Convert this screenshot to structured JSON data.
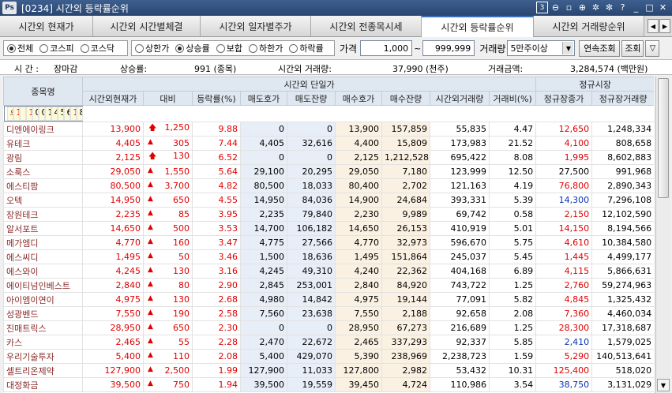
{
  "window": {
    "code": "[0234]",
    "title": "시간외 등락률순위",
    "logo": "Ps",
    "tool_number": "3"
  },
  "tabs": [
    {
      "label": "시간외 현재가"
    },
    {
      "label": "시간외 시간별체결"
    },
    {
      "label": "시간외 일자별주가"
    },
    {
      "label": "시간외 전종목시세"
    },
    {
      "label": "시간외 등락률순위"
    },
    {
      "label": "시간외 거래량순위"
    }
  ],
  "filters": {
    "market": [
      "전체",
      "코스피",
      "코스닥"
    ],
    "direction": [
      "상한가",
      "상승률",
      "보합",
      "하한가",
      "하락률"
    ],
    "price_label": "가격",
    "price_from": "1,000",
    "price_sep": "~",
    "price_to": "999,999",
    "volume_label": "거래량",
    "volume_value": "5만주이상",
    "continuous_btn": "연속조회",
    "query_btn": "조회"
  },
  "summary": {
    "time_label": "시  간 :",
    "time_value": "장마감",
    "rise_label": "상승률:",
    "rise_value": "991 (종목)",
    "vol_label": "시간외 거래량:",
    "vol_value": "37,990 (천주)",
    "amt_label": "거래금액:",
    "amt_value": "3,284,574 (백만원)"
  },
  "header": {
    "name": "종목명",
    "group1": "시간외 단일가",
    "group2": "정규시장",
    "cols": [
      "시간외현재가",
      "대비",
      "등락률(%)",
      "매도호가",
      "매도잔량",
      "매수호가",
      "매수잔량",
      "시간외거래량",
      "거래비(%)",
      "정규장종가",
      "정규장거래량"
    ]
  },
  "rows": [
    {
      "n": "우정바이오",
      "p": "11,550",
      "s": "u",
      "c": "1,050",
      "r": "10.00",
      "ap": "0",
      "aq": "0",
      "bp": "11,550",
      "bq": "434,784",
      "v": "586,459",
      "vr": "6.98",
      "cl": "10,500",
      "cc": "up",
      "cv": "8,402,296"
    },
    {
      "n": "디엔에이링크",
      "p": "13,900",
      "s": "u",
      "c": "1,250",
      "r": "9.88",
      "ap": "0",
      "aq": "0",
      "bp": "13,900",
      "bq": "157,859",
      "v": "55,835",
      "vr": "4.47",
      "cl": "12,650",
      "cc": "up",
      "cv": "1,248,334"
    },
    {
      "n": "유테크",
      "p": "4,405",
      "s": "t",
      "c": "305",
      "r": "7.44",
      "ap": "4,405",
      "aq": "32,616",
      "bp": "4,400",
      "bq": "15,809",
      "v": "173,983",
      "vr": "21.52",
      "cl": "4,100",
      "cc": "up",
      "cv": "808,658"
    },
    {
      "n": "광림",
      "p": "2,125",
      "s": "u",
      "c": "130",
      "r": "6.52",
      "ap": "0",
      "aq": "0",
      "bp": "2,125",
      "bq": "1,212,528",
      "v": "695,422",
      "vr": "8.08",
      "cl": "1,995",
      "cc": "up",
      "cv": "8,602,883"
    },
    {
      "n": "소룩스",
      "p": "29,050",
      "s": "t",
      "c": "1,550",
      "r": "5.64",
      "ap": "29,100",
      "aq": "20,295",
      "bp": "29,050",
      "bq": "7,180",
      "v": "123,999",
      "vr": "12.50",
      "cl": "27,500",
      "cc": "",
      "cv": "991,968"
    },
    {
      "n": "에스티팜",
      "p": "80,500",
      "s": "t",
      "c": "3,700",
      "r": "4.82",
      "ap": "80,500",
      "aq": "18,033",
      "bp": "80,400",
      "bq": "2,702",
      "v": "121,163",
      "vr": "4.19",
      "cl": "76,800",
      "cc": "up",
      "cv": "2,890,343"
    },
    {
      "n": "오텍",
      "p": "14,950",
      "s": "t",
      "c": "650",
      "r": "4.55",
      "ap": "14,950",
      "aq": "84,036",
      "bp": "14,900",
      "bq": "24,684",
      "v": "393,331",
      "vr": "5.39",
      "cl": "14,300",
      "cc": "dn",
      "cv": "7,296,108"
    },
    {
      "n": "장원테크",
      "p": "2,235",
      "s": "t",
      "c": "85",
      "r": "3.95",
      "ap": "2,235",
      "aq": "79,840",
      "bp": "2,230",
      "bq": "9,989",
      "v": "69,742",
      "vr": "0.58",
      "cl": "2,150",
      "cc": "up",
      "cv": "12,102,590"
    },
    {
      "n": "알서포트",
      "p": "14,650",
      "s": "t",
      "c": "500",
      "r": "3.53",
      "ap": "14,700",
      "aq": "106,182",
      "bp": "14,650",
      "bq": "26,153",
      "v": "410,919",
      "vr": "5.01",
      "cl": "14,150",
      "cc": "up",
      "cv": "8,194,566"
    },
    {
      "n": "메가엠디",
      "p": "4,770",
      "s": "t",
      "c": "160",
      "r": "3.47",
      "ap": "4,775",
      "aq": "27,566",
      "bp": "4,770",
      "bq": "32,973",
      "v": "596,670",
      "vr": "5.75",
      "cl": "4,610",
      "cc": "up",
      "cv": "10,384,580"
    },
    {
      "n": "에스씨디",
      "p": "1,495",
      "s": "t",
      "c": "50",
      "r": "3.46",
      "ap": "1,500",
      "aq": "18,636",
      "bp": "1,495",
      "bq": "151,864",
      "v": "245,037",
      "vr": "5.45",
      "cl": "1,445",
      "cc": "up",
      "cv": "4,499,177"
    },
    {
      "n": "에스와이",
      "p": "4,245",
      "s": "t",
      "c": "130",
      "r": "3.16",
      "ap": "4,245",
      "aq": "49,310",
      "bp": "4,240",
      "bq": "22,362",
      "v": "404,168",
      "vr": "6.89",
      "cl": "4,115",
      "cc": "up",
      "cv": "5,866,631"
    },
    {
      "n": "에이티넘인베스트",
      "p": "2,840",
      "s": "t",
      "c": "80",
      "r": "2.90",
      "ap": "2,845",
      "aq": "253,001",
      "bp": "2,840",
      "bq": "84,920",
      "v": "743,722",
      "vr": "1.25",
      "cl": "2,760",
      "cc": "up",
      "cv": "59,274,963"
    },
    {
      "n": "아이엠이연이",
      "p": "4,975",
      "s": "t",
      "c": "130",
      "r": "2.68",
      "ap": "4,980",
      "aq": "14,842",
      "bp": "4,975",
      "bq": "19,144",
      "v": "77,091",
      "vr": "5.82",
      "cl": "4,845",
      "cc": "up",
      "cv": "1,325,432"
    },
    {
      "n": "성광벤드",
      "p": "7,550",
      "s": "t",
      "c": "190",
      "r": "2.58",
      "ap": "7,560",
      "aq": "23,638",
      "bp": "7,550",
      "bq": "2,188",
      "v": "92,658",
      "vr": "2.08",
      "cl": "7,360",
      "cc": "up",
      "cv": "4,460,034"
    },
    {
      "n": "진매트릭스",
      "p": "28,950",
      "s": "t",
      "c": "650",
      "r": "2.30",
      "ap": "0",
      "aq": "0",
      "bp": "28,950",
      "bq": "67,273",
      "v": "216,689",
      "vr": "1.25",
      "cl": "28,300",
      "cc": "up",
      "cv": "17,318,687"
    },
    {
      "n": "카스",
      "p": "2,465",
      "s": "t",
      "c": "55",
      "r": "2.28",
      "ap": "2,470",
      "aq": "22,672",
      "bp": "2,465",
      "bq": "337,293",
      "v": "92,337",
      "vr": "5.85",
      "cl": "2,410",
      "cc": "dn",
      "cv": "1,579,025"
    },
    {
      "n": "우리기술투자",
      "p": "5,400",
      "s": "t",
      "c": "110",
      "r": "2.08",
      "ap": "5,400",
      "aq": "429,070",
      "bp": "5,390",
      "bq": "238,969",
      "v": "2,238,723",
      "vr": "1.59",
      "cl": "5,290",
      "cc": "up",
      "cv": "140,513,641"
    },
    {
      "n": "셀트리온제약",
      "p": "127,900",
      "s": "t",
      "c": "2,500",
      "r": "1.99",
      "ap": "127,900",
      "aq": "11,033",
      "bp": "127,800",
      "bq": "2,982",
      "v": "53,432",
      "vr": "10.31",
      "cl": "125,400",
      "cc": "up",
      "cv": "518,020"
    },
    {
      "n": "대정화금",
      "p": "39,500",
      "s": "t",
      "c": "750",
      "r": "1.94",
      "ap": "39,500",
      "aq": "19,559",
      "bp": "39,450",
      "bq": "4,724",
      "v": "110,986",
      "vr": "3.54",
      "cl": "38,750",
      "cc": "dn",
      "cv": "3,131,029"
    }
  ]
}
